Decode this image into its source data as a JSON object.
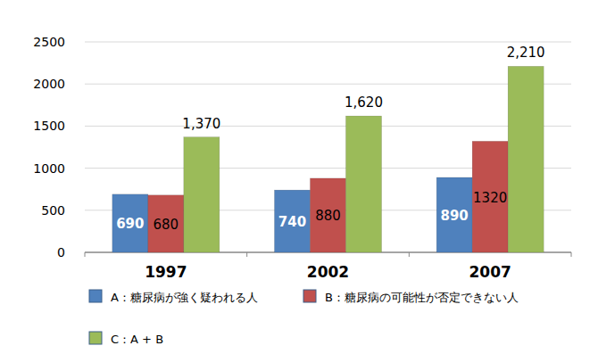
{
  "chart_data": {
    "type": "bar",
    "categories": [
      "1997",
      "2002",
      "2007"
    ],
    "series": [
      {
        "name": "A：糖尿病が強く疑われる人",
        "color": "#4f81bd",
        "values": [
          690,
          740,
          890
        ]
      },
      {
        "name": "B：糖尿病の可能性が否定できない人",
        "color": "#c0504d",
        "values": [
          680,
          880,
          1320
        ]
      },
      {
        "name": "C：A + B",
        "color": "#9bbb59",
        "values": [
          1370,
          1620,
          2210
        ],
        "value_labels": [
          "1,370",
          "1,620",
          "2,210"
        ]
      }
    ],
    "ylim": [
      0,
      2500
    ],
    "yticks": [
      0,
      500,
      1000,
      1500,
      2000,
      2500
    ],
    "grid": true,
    "legend": "bottom",
    "data_labels": true
  }
}
